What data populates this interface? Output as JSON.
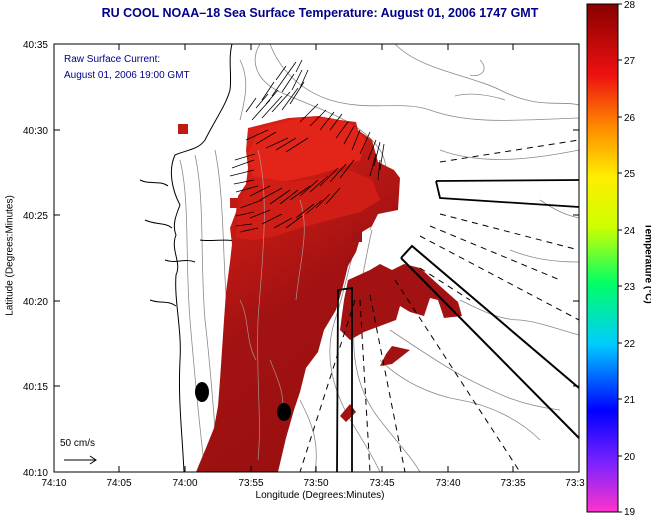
{
  "title": "RU COOL  NOAA–18  Sea Surface Temperature:  August 01, 2006 1747 GMT",
  "current_label": {
    "line1": "Raw Surface Current:",
    "line2": "August 01, 2006 19:00 GMT"
  },
  "scale_label": "50 cm/s",
  "axes": {
    "xlabel": "Longitude (Degrees:Minutes)",
    "ylabel": "Latitude (Degrees:Minutes)",
    "x_ticks": [
      "74:10",
      "74:05",
      "74:00",
      "73:55",
      "73:50",
      "73:45",
      "73:40",
      "73:35",
      "73:3"
    ],
    "y_ticks": [
      "40:35",
      "40:30",
      "40:25",
      "40:20",
      "40:15",
      "40:10"
    ]
  },
  "colorbar": {
    "label": "Temperature (°C)",
    "ticks": [
      "28",
      "27",
      "26",
      "25",
      "24",
      "23",
      "22",
      "21",
      "20",
      "19"
    ],
    "range": [
      19,
      28
    ]
  },
  "colors": {
    "title": "#00008b",
    "sst_warm": "#a01010",
    "sst_hot": "#e02018"
  }
}
